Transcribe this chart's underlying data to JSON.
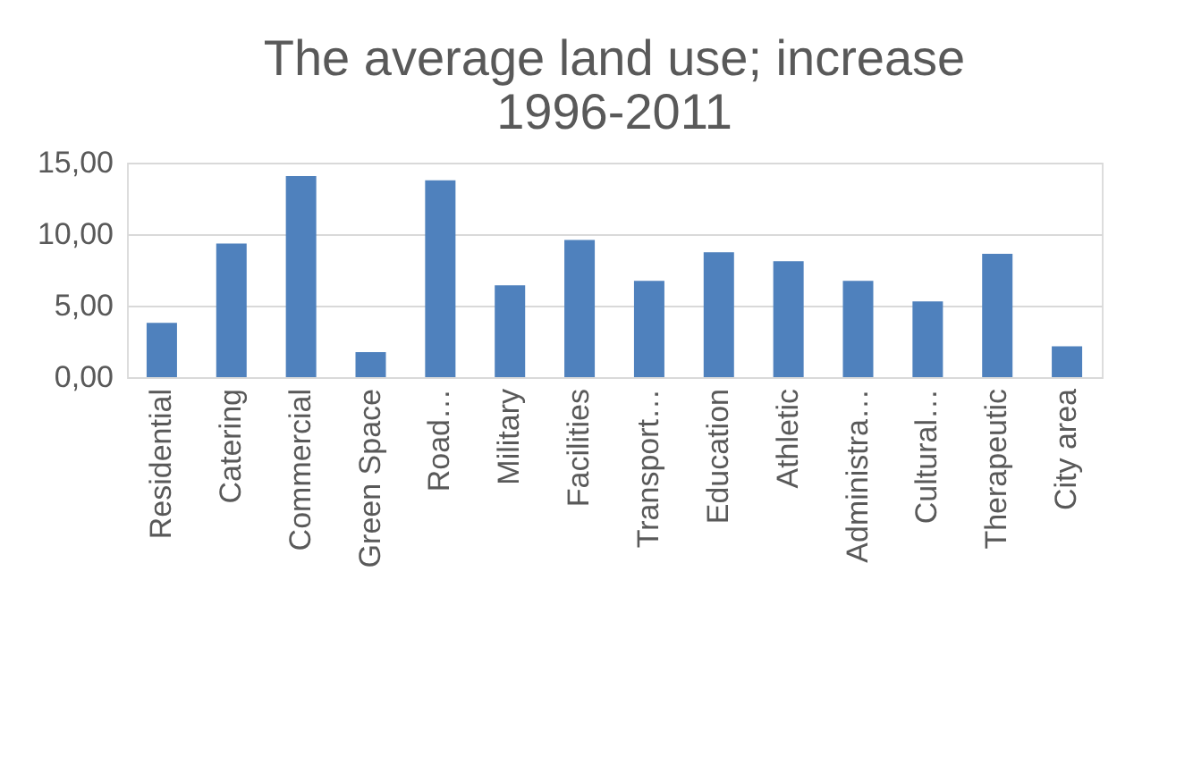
{
  "chart_data": {
    "type": "bar",
    "title": [
      "The average land use; increase",
      "1996-2011"
    ],
    "categories": [
      "Residential",
      "Catering",
      "Commercial",
      "Green Space",
      "Road…",
      "Military",
      "Facilities",
      "Transport…",
      "Education",
      "Athletic",
      "Administra…",
      "Cultural…",
      "Therapeutic",
      "City area"
    ],
    "values": [
      3.8,
      9.35,
      14.07,
      1.75,
      13.76,
      6.42,
      9.6,
      6.73,
      8.73,
      8.11,
      6.73,
      5.29,
      8.63,
      2.16
    ],
    "color": "#4f81bd",
    "ylim": [
      0,
      15
    ],
    "yticks": [
      {
        "value": 0,
        "label": "0,00"
      },
      {
        "value": 5,
        "label": "5,00"
      },
      {
        "value": 10,
        "label": "10,00"
      },
      {
        "value": 15,
        "label": "15,00"
      }
    ],
    "grid": "y"
  }
}
